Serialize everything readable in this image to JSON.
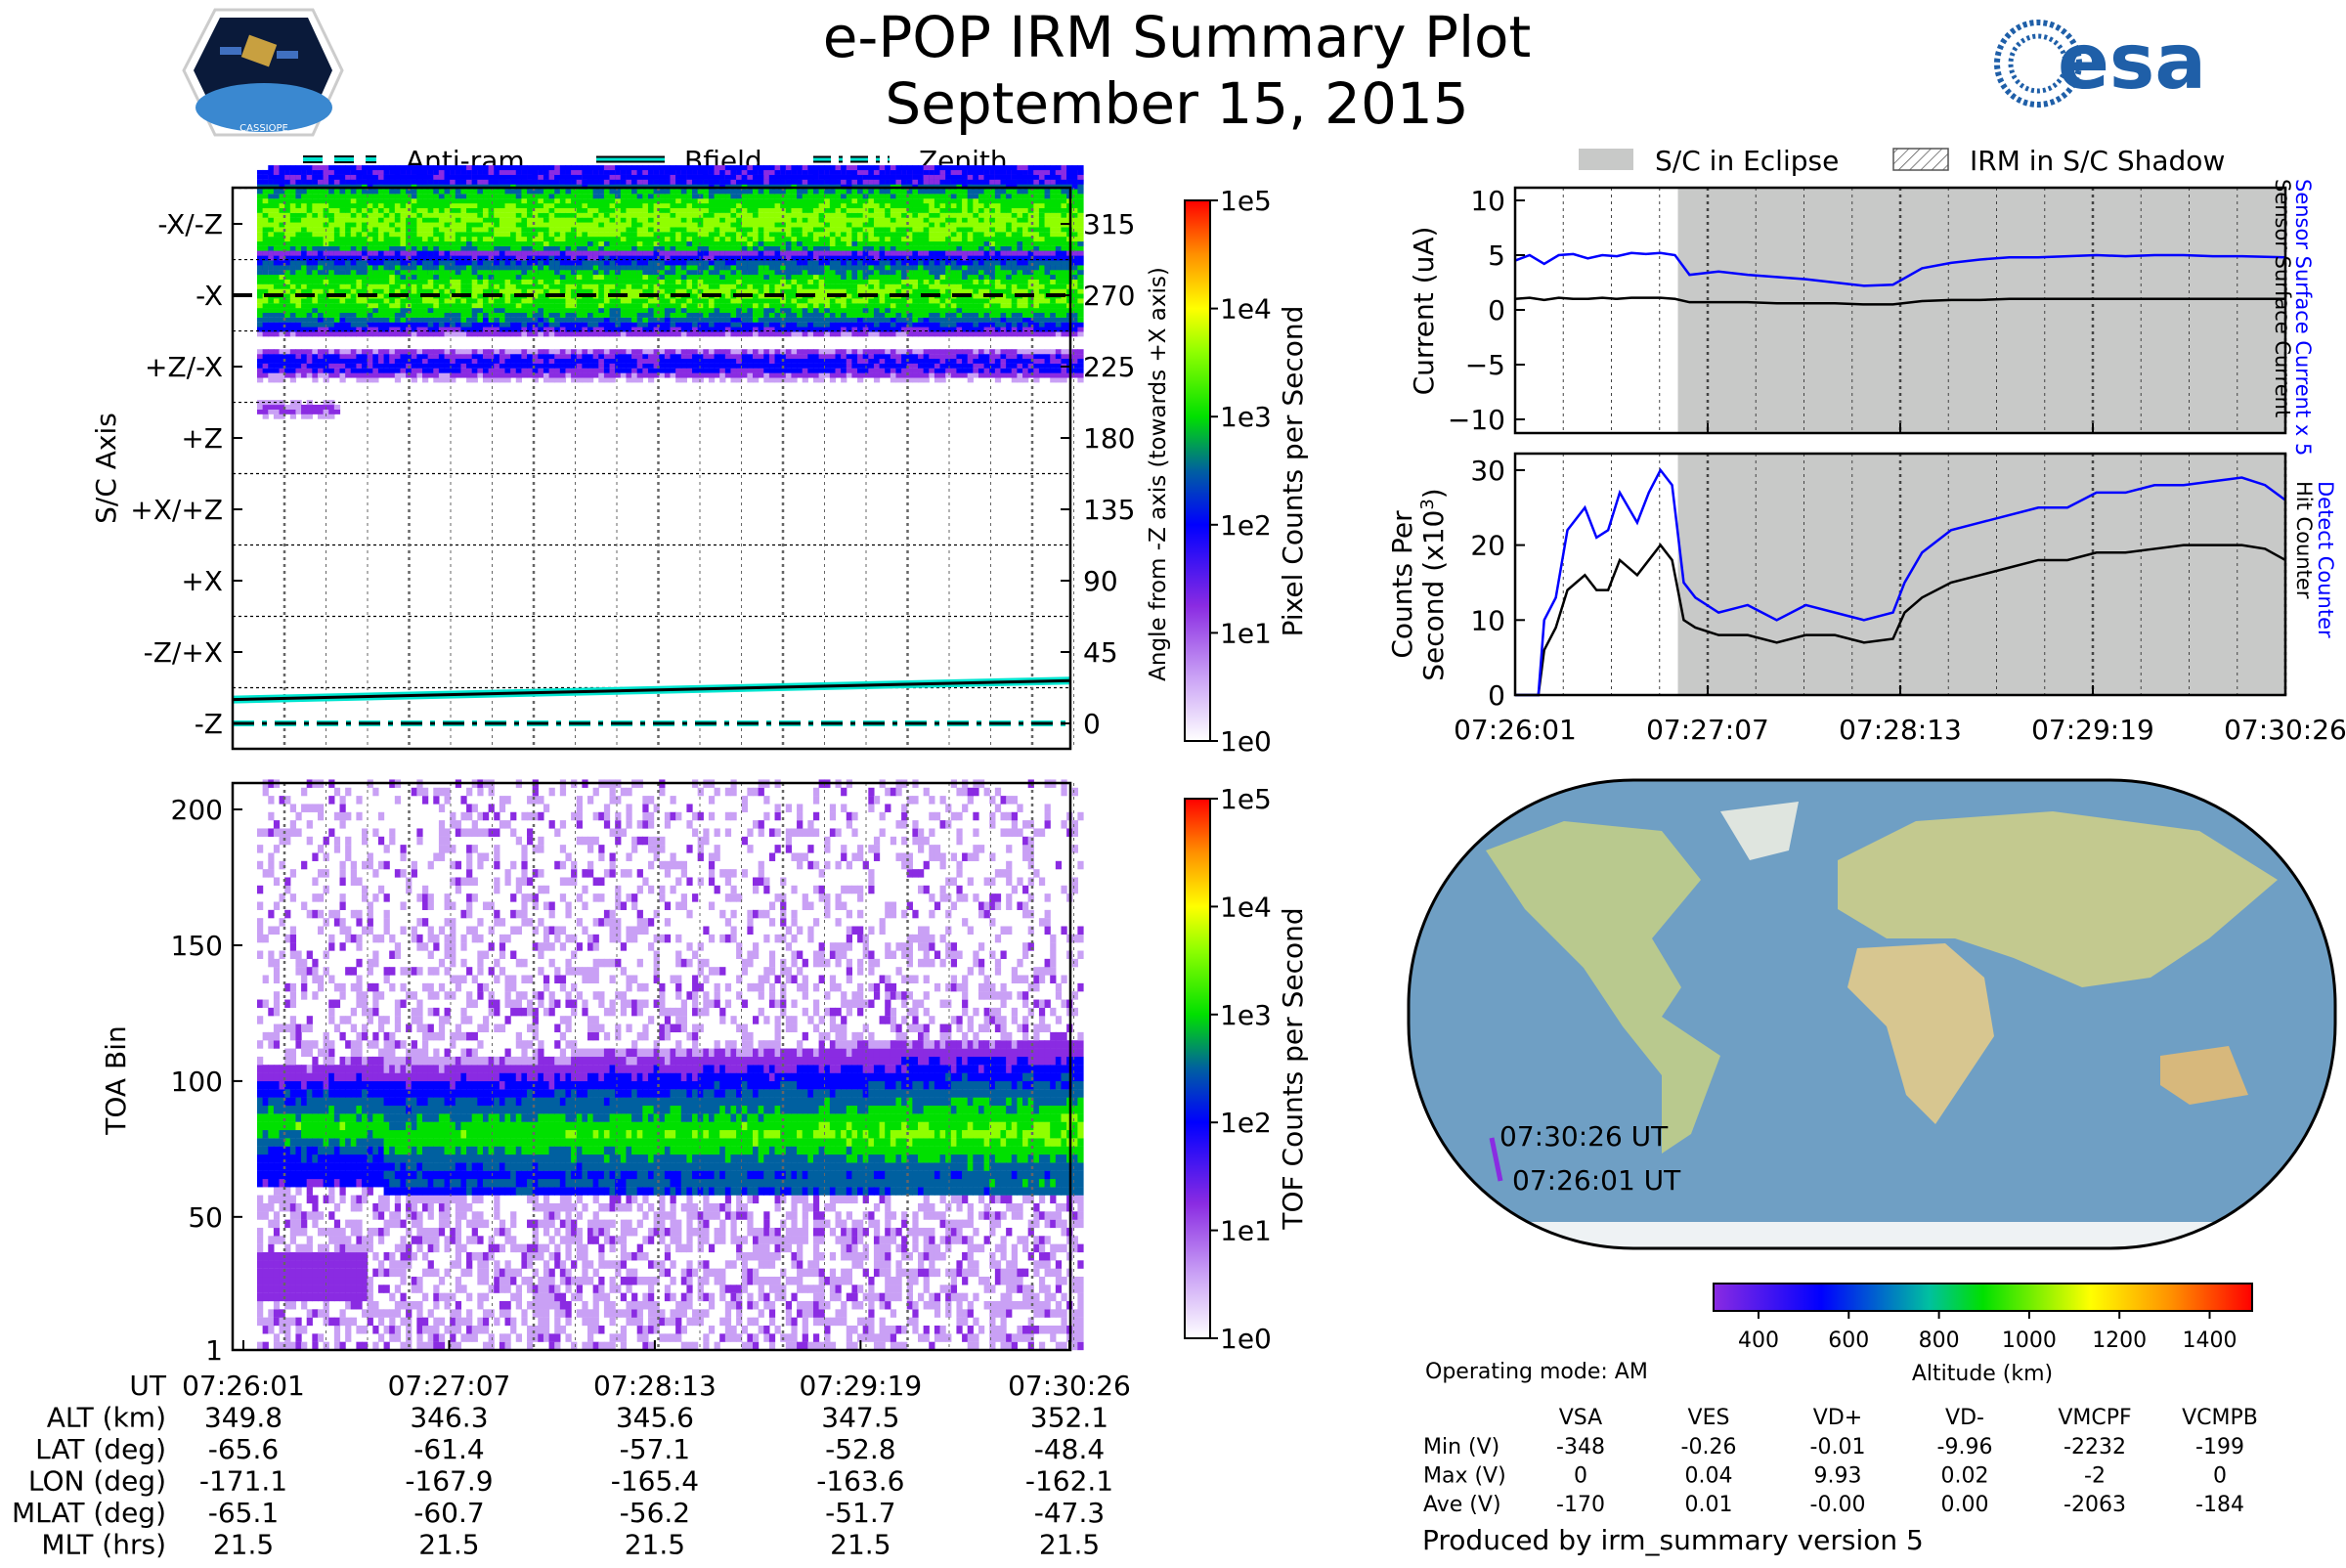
{
  "header": {
    "title": "e-POP IRM Summary Plot",
    "date": "September 15, 2015",
    "left_logo_text": "CASSIOPE",
    "right_logo_text": "esa"
  },
  "colors": {
    "eclipse": "#c8c9c8",
    "blue_series": "#0000ff",
    "black_series": "#000000",
    "accent_cyan": "#00e5d0"
  },
  "chart_data": [
    {
      "type": "heatmap",
      "name": "sc-axis-spectrogram",
      "legend": [
        "Anti-ram",
        "Bfield",
        "Zenith"
      ],
      "ylabel": "S/C Axis",
      "ylabel_right": "Angle from -Z axis (towards +X axis)",
      "axis_labels": [
        "-Z",
        "-Z/+X",
        "+X",
        "+X/+Z",
        "+Z",
        "+Z/-X",
        "-X",
        "-X/-Z"
      ],
      "angle_ticks": [
        "0",
        "45",
        "90",
        "135",
        "180",
        "225",
        "270",
        "315"
      ],
      "colorbar_label": "Pixel Counts per Second",
      "colorbar_ticks": [
        "1e0",
        "1e1",
        "1e2",
        "1e3",
        "1e4",
        "1e5"
      ],
      "bfield_angle": [
        15,
        27
      ],
      "antiram_angle": 270,
      "zenith_angle": 0
    },
    {
      "type": "heatmap",
      "name": "toa-spectrogram",
      "ylabel": "TOA Bin",
      "yticks": [
        "1",
        "50",
        "100",
        "150",
        "200"
      ],
      "ylim": [
        1,
        210
      ],
      "colorbar_label": "TOF Counts per Second",
      "colorbar_ticks": [
        "1e0",
        "1e1",
        "1e2",
        "1e3",
        "1e4",
        "1e5"
      ]
    },
    {
      "type": "line",
      "name": "current",
      "ylabel": "Current (uA)",
      "yticks": [
        "10",
        "5",
        "0",
        "−5",
        "−10"
      ],
      "ylim": [
        -11,
        11
      ],
      "legend": [
        "S/C in Eclipse",
        "IRM in S/C Shadow"
      ],
      "right_labels": [
        "Sensor Surface Current x 5",
        "Sensor Surface Current"
      ],
      "x_seconds": [
        0,
        5,
        10,
        15,
        20,
        25,
        30,
        35,
        40,
        45,
        50,
        55,
        60,
        70,
        80,
        90,
        100,
        110,
        120,
        130,
        140,
        150,
        160,
        170,
        180,
        190,
        200,
        210,
        220,
        230,
        240,
        250,
        265
      ],
      "series": [
        {
          "name": "Sensor Surface Current x 5",
          "color": "#0000ff",
          "values": [
            4.5,
            5.0,
            4.2,
            5.0,
            5.1,
            4.7,
            5.0,
            4.9,
            5.2,
            5.1,
            5.2,
            5.0,
            3.2,
            3.5,
            3.2,
            3.0,
            2.8,
            2.5,
            2.2,
            2.3,
            3.8,
            4.3,
            4.6,
            4.8,
            4.8,
            4.9,
            5.0,
            4.9,
            5.0,
            5.0,
            4.9,
            4.9,
            4.8
          ]
        },
        {
          "name": "Sensor Surface Current",
          "color": "#000000",
          "values": [
            1.0,
            1.1,
            0.9,
            1.1,
            1.0,
            1.0,
            1.1,
            1.0,
            1.1,
            1.1,
            1.1,
            1.0,
            0.7,
            0.7,
            0.7,
            0.6,
            0.6,
            0.6,
            0.5,
            0.5,
            0.8,
            0.9,
            0.9,
            1.0,
            1.0,
            1.0,
            1.0,
            1.0,
            1.0,
            1.0,
            1.0,
            1.0,
            1.0
          ]
        }
      ],
      "eclipse_start_seconds": 56
    },
    {
      "type": "line",
      "name": "counts",
      "ylabel": "Counts Per Second (x10³)",
      "ylabel_line1": "Counts Per",
      "ylabel_line2": "Second (x10",
      "ylabel_sup": "3",
      "ylabel_end": ")",
      "yticks": [
        "30",
        "20",
        "10",
        "0"
      ],
      "ylim": [
        0,
        32
      ],
      "right_labels": [
        "Detect Counter",
        "Hit Counter"
      ],
      "xticks": [
        "07:26:01",
        "07:27:07",
        "07:28:13",
        "07:29:19",
        "07:30:26"
      ],
      "x_seconds": [
        0,
        8,
        10,
        14,
        18,
        24,
        28,
        32,
        36,
        42,
        46,
        50,
        54,
        58,
        62,
        70,
        80,
        90,
        100,
        110,
        120,
        130,
        134,
        140,
        150,
        160,
        170,
        180,
        190,
        200,
        210,
        220,
        230,
        240,
        250,
        258,
        265
      ],
      "series": [
        {
          "name": "Detect Counter",
          "color": "#0000ff",
          "values": [
            0,
            0,
            10,
            13,
            22,
            25,
            21,
            22,
            27,
            23,
            27,
            30,
            28,
            15,
            13,
            11,
            12,
            10,
            12,
            11,
            10,
            11,
            15,
            19,
            22,
            23,
            24,
            25,
            25,
            27,
            27,
            28,
            28,
            28.5,
            29,
            28,
            26
          ]
        },
        {
          "name": "Hit Counter",
          "color": "#000000",
          "values": [
            0,
            0,
            6,
            9,
            14,
            16,
            14,
            14,
            18,
            16,
            18,
            20,
            18,
            10,
            9,
            8,
            8,
            7,
            8,
            8,
            7,
            7.5,
            11,
            13,
            15,
            16,
            17,
            18,
            18,
            19,
            19,
            19.5,
            20,
            20,
            20,
            19.5,
            18
          ]
        }
      ]
    },
    {
      "type": "map",
      "name": "orbit-track",
      "track_labels": [
        "07:30:26 UT",
        "07:26:01 UT"
      ],
      "colorbar_label": "Altitude (km)",
      "colorbar_ticks": [
        "400",
        "600",
        "800",
        "1000",
        "1200",
        "1400"
      ],
      "track_altitude_km": [
        349.8,
        352.1
      ]
    }
  ],
  "ephemeris": {
    "row_labels": [
      "UT",
      "ALT (km)",
      "LAT (deg)",
      "LON (deg)",
      "MLAT (deg)",
      "MLT (hrs)"
    ],
    "columns": [
      [
        "07:26:01",
        "349.8",
        "-65.6",
        "-171.1",
        "-65.1",
        "21.5"
      ],
      [
        "07:27:07",
        "346.3",
        "-61.4",
        "-167.9",
        "-60.7",
        "21.5"
      ],
      [
        "07:28:13",
        "345.6",
        "-57.1",
        "-165.4",
        "-56.2",
        "21.5"
      ],
      [
        "07:29:19",
        "347.5",
        "-52.8",
        "-163.6",
        "-51.7",
        "21.5"
      ],
      [
        "07:30:26",
        "352.1",
        "-48.4",
        "-162.1",
        "-47.3",
        "21.5"
      ]
    ]
  },
  "voltages": {
    "operating_mode": "Operating mode: AM",
    "headers": [
      "VSA",
      "VES",
      "VD+",
      "VD-",
      "VMCPF",
      "VCMPB"
    ],
    "rows": [
      {
        "label": "Min (V)",
        "values": [
          "-348",
          "-0.26",
          "-0.01",
          "-9.96",
          "-2232",
          "-199"
        ]
      },
      {
        "label": "Max (V)",
        "values": [
          "0",
          "0.04",
          "9.93",
          "0.02",
          "-2",
          "0"
        ]
      },
      {
        "label": "Ave (V)",
        "values": [
          "-170",
          "0.01",
          "-0.00",
          "0.00",
          "-2063",
          "-184"
        ]
      }
    ],
    "footer": "Produced by irm_summary version 5"
  }
}
